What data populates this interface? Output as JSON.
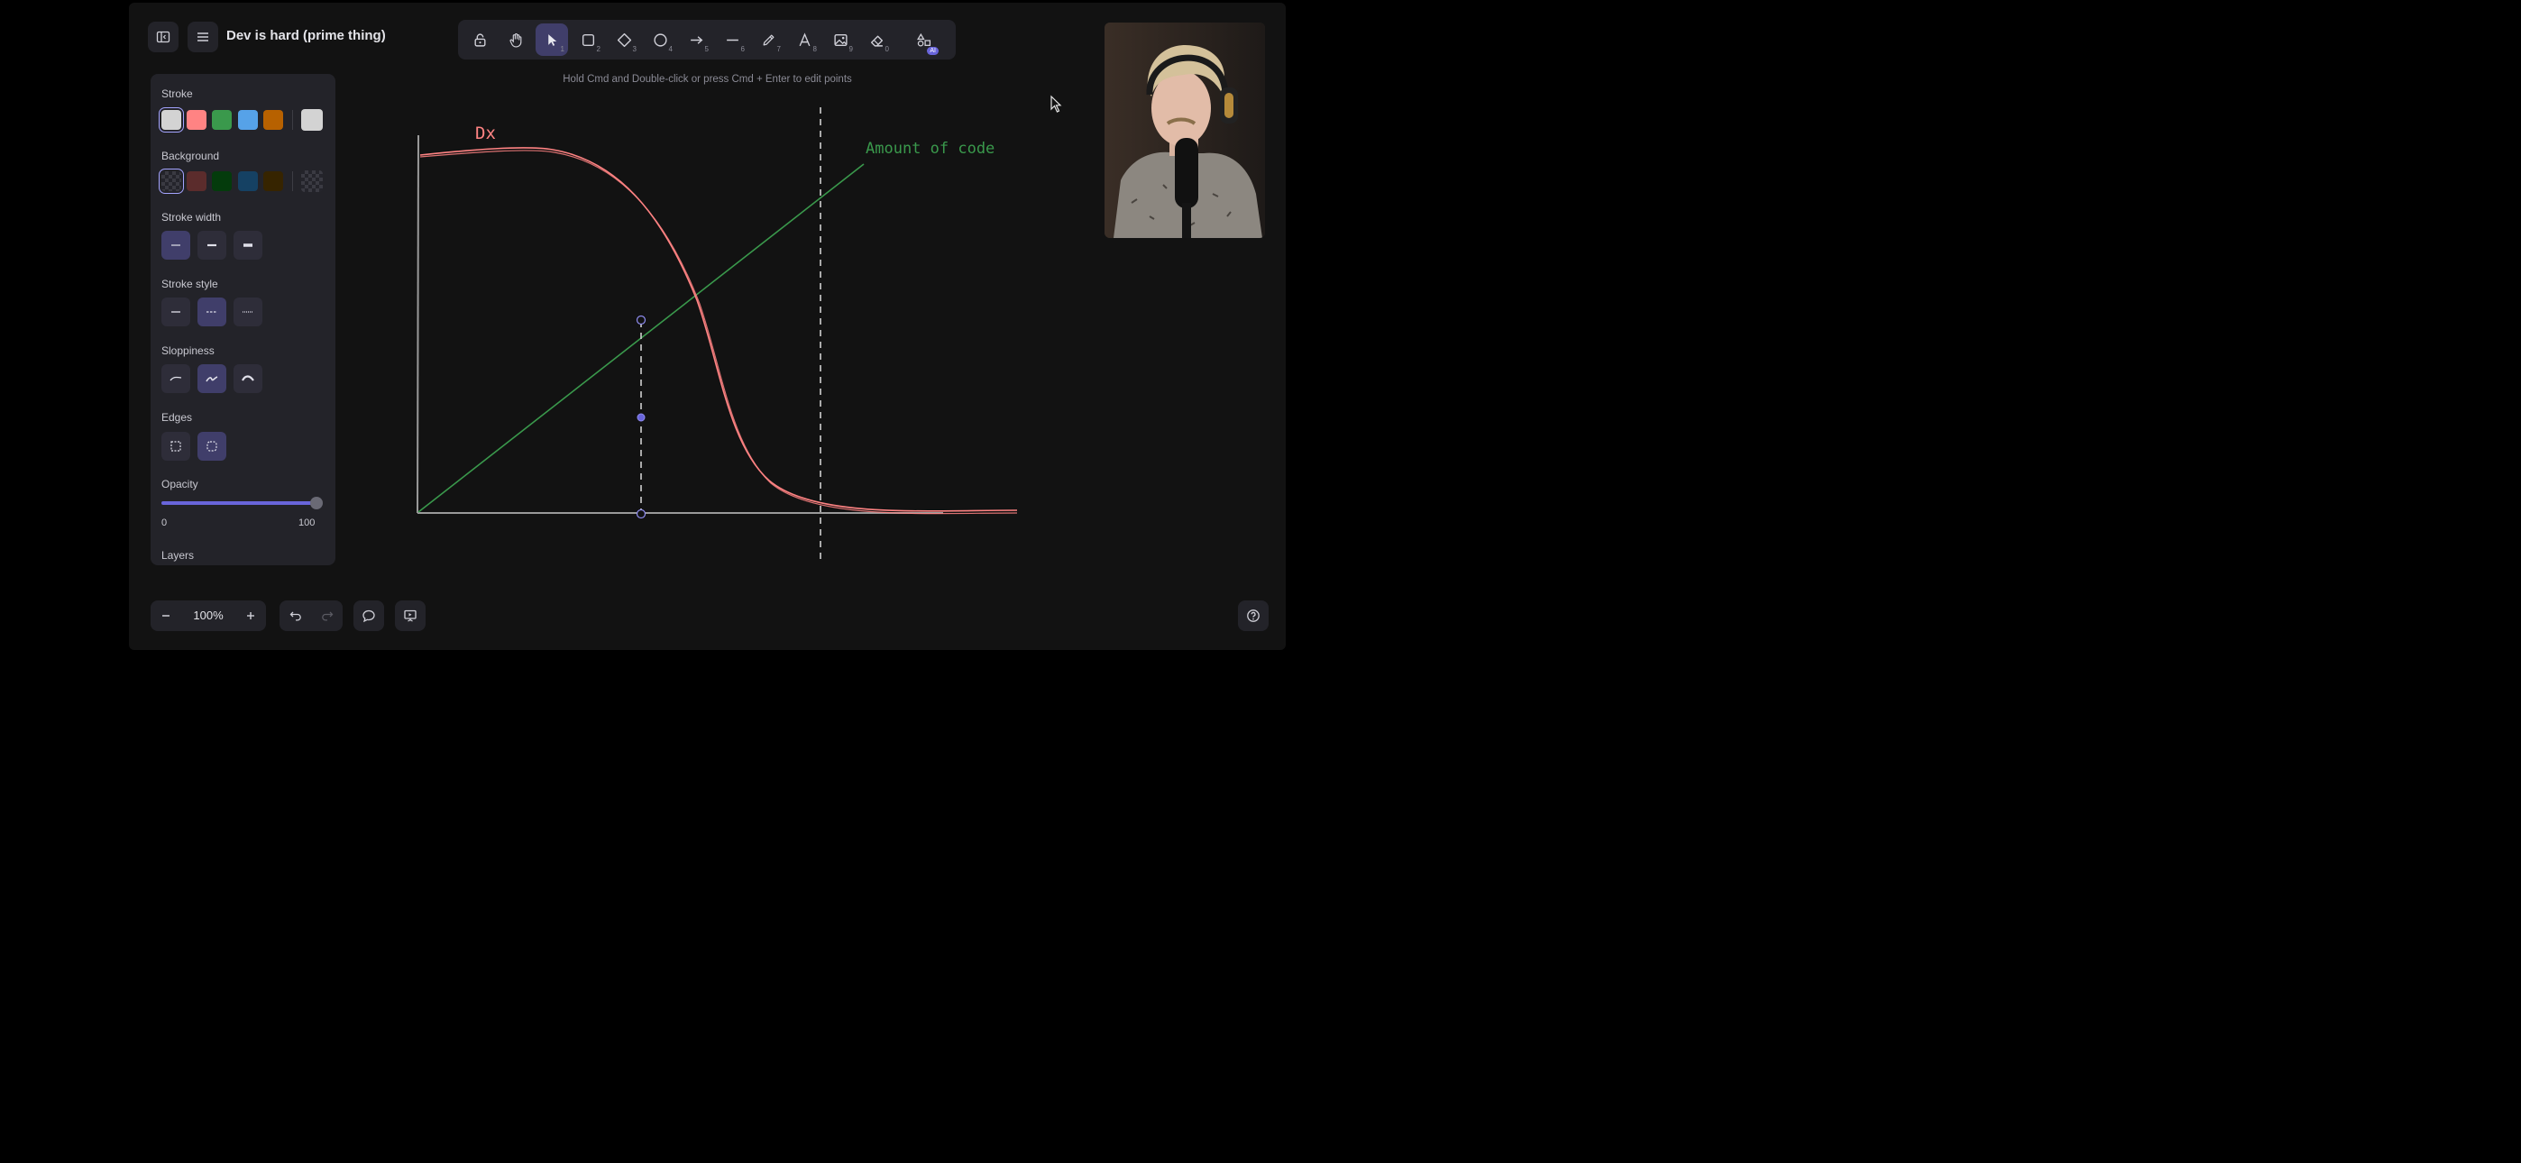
{
  "header": {
    "title": "Dev is hard (prime thing)",
    "sidebar_toggle_icon": "sidebar-toggle-icon",
    "menu_icon": "hamburger-menu-icon"
  },
  "toolbar": {
    "tools": [
      {
        "name": "lock",
        "icon": "lock-icon",
        "shortcut": ""
      },
      {
        "name": "hand",
        "icon": "hand-icon",
        "shortcut": ""
      },
      {
        "name": "selection",
        "icon": "pointer-icon",
        "shortcut": "1",
        "active": true
      },
      {
        "name": "rectangle",
        "icon": "rectangle-icon",
        "shortcut": "2"
      },
      {
        "name": "diamond",
        "icon": "diamond-icon",
        "shortcut": "3"
      },
      {
        "name": "ellipse",
        "icon": "ellipse-icon",
        "shortcut": "4"
      },
      {
        "name": "arrow",
        "icon": "arrow-icon",
        "shortcut": "5"
      },
      {
        "name": "line",
        "icon": "line-icon",
        "shortcut": "6"
      },
      {
        "name": "draw",
        "icon": "pencil-icon",
        "shortcut": "7"
      },
      {
        "name": "text",
        "icon": "text-icon",
        "shortcut": "8"
      },
      {
        "name": "image",
        "icon": "image-icon",
        "shortcut": "9"
      },
      {
        "name": "eraser",
        "icon": "eraser-icon",
        "shortcut": "0"
      },
      {
        "name": "more-tools",
        "icon": "shapes-icon",
        "badge": "AI"
      }
    ]
  },
  "hint": "Hold Cmd and Double-click or press Cmd + Enter to edit points",
  "properties": {
    "stroke_label": "Stroke",
    "stroke_colors": [
      "#d3d3d3",
      "#ff8383",
      "#3a994c",
      "#56a2e8",
      "#b76100"
    ],
    "stroke_selected": "#d3d3d3",
    "background_label": "Background",
    "background_colors": [
      "transparent",
      "#5b2c2c",
      "#043b0c",
      "#154163",
      "#362400"
    ],
    "stroke_width_label": "Stroke width",
    "stroke_style_label": "Stroke style",
    "sloppiness_label": "Sloppiness",
    "edges_label": "Edges",
    "opacity_label": "Opacity",
    "opacity_min": "0",
    "opacity_max": "100",
    "opacity_value": 100,
    "layers_label": "Layers"
  },
  "canvas": {
    "curve_label": "Dx",
    "line_label": "Amount of code",
    "curve_color": "#ff8383",
    "line_color": "#3a994c"
  },
  "footer": {
    "zoom_level": "100%"
  }
}
